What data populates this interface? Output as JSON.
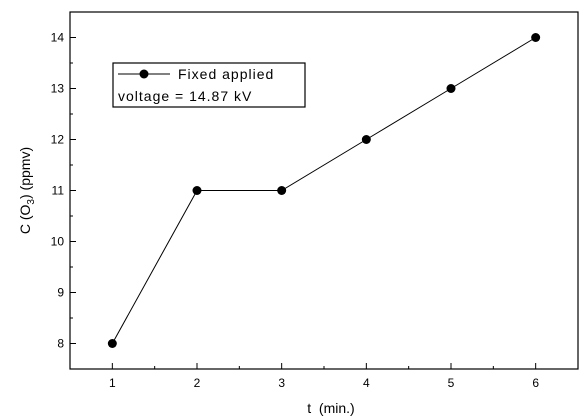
{
  "chart_data": {
    "type": "line",
    "title": "",
    "xlabel": "t  (min.)",
    "ylabel": "C (O₃) (ppmv)",
    "x": [
      1,
      2,
      3,
      4,
      5,
      6
    ],
    "xlim": [
      0.5,
      6.5
    ],
    "ylim": [
      7.5,
      14.5
    ],
    "xticks": [
      "1",
      "2",
      "3",
      "4",
      "5",
      "6"
    ],
    "yticks": [
      "8",
      "9",
      "10",
      "11",
      "12",
      "13",
      "14"
    ],
    "grid": false,
    "legend_position": "top-left",
    "series": [
      {
        "name": "Fixed applied voltage = 14.87 kV",
        "legend_line1": "Fixed applied",
        "legend_line2": "voltage = 14.87 kV",
        "values": [
          8,
          11,
          11,
          12,
          13,
          14
        ]
      }
    ]
  }
}
